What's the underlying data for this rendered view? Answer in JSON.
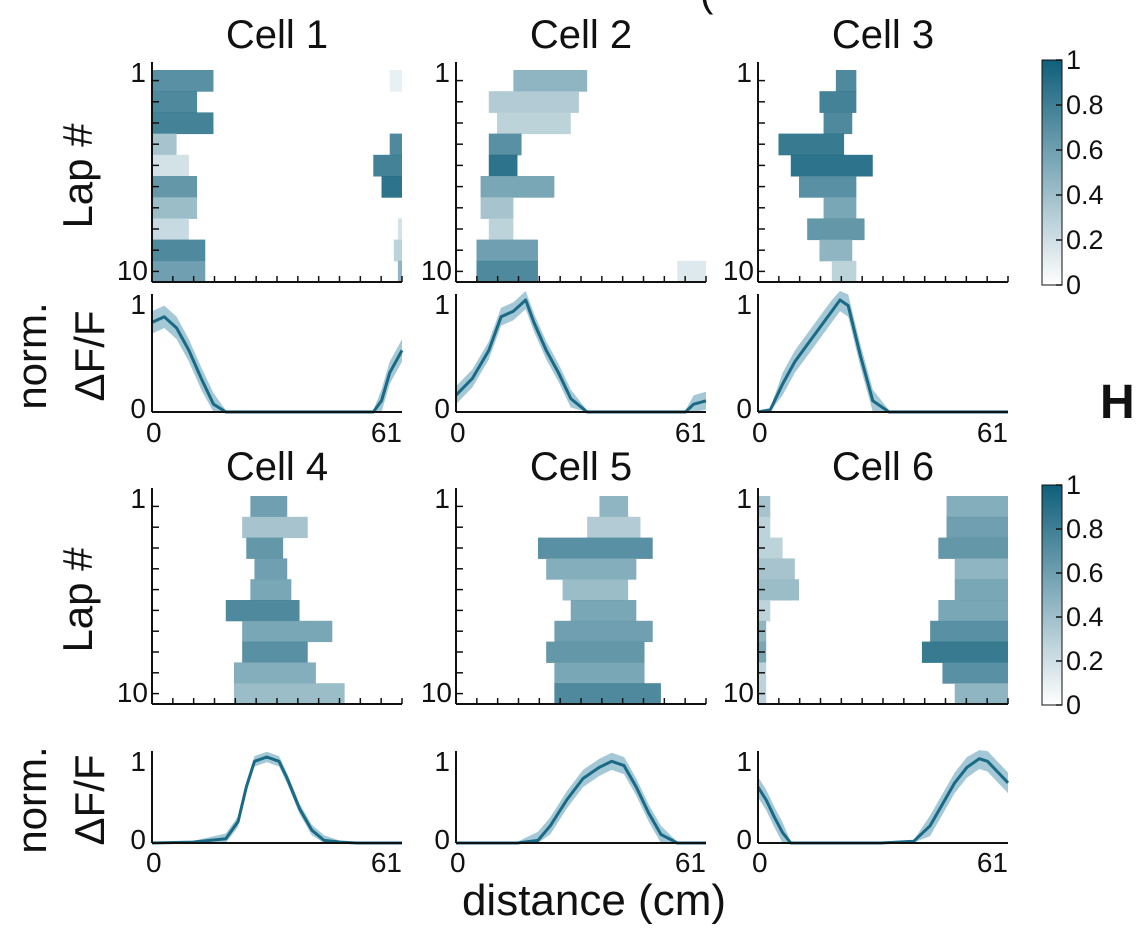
{
  "panel_letters": {
    "top_partial": "(",
    "right": "H"
  },
  "colorbar": {
    "ticks": [
      "1",
      "0.8",
      "0.6",
      "0.4",
      "0.2",
      "0"
    ],
    "label": "norm. ΔF/F",
    "color_low": "#ffffff",
    "color_high": "#0f5f7a"
  },
  "axis_labels": {
    "lap_ylabel": "Lap #",
    "trace_ylabel_line1": "norm.",
    "trace_ylabel_line2": "ΔF/F",
    "xlabel": "distance (cm)",
    "lap_tick_first": "1",
    "lap_tick_last": "10",
    "trace_tick_max": "1",
    "trace_tick_min": "0",
    "x_tick_min": "0",
    "x_tick_max": "61"
  },
  "chart_data": [
    {
      "type": "heatmap",
      "title": "Cell 1",
      "x_range": [
        0,
        61
      ],
      "lap_range": [
        1,
        10
      ],
      "laps": [
        {
          "lap": 1,
          "bins": [
            [
              0,
              15,
              0.75
            ]
          ],
          "end": [
            [
              58,
              61,
              0.1
            ]
          ]
        },
        {
          "lap": 2,
          "bins": [
            [
              0,
              11,
              0.8
            ]
          ]
        },
        {
          "lap": 3,
          "bins": [
            [
              0,
              15,
              0.85
            ]
          ]
        },
        {
          "lap": 4,
          "bins": [
            [
              0,
              6,
              0.4
            ]
          ],
          "end": [
            [
              58,
              61,
              0.8
            ]
          ]
        },
        {
          "lap": 5,
          "bins": [
            [
              0,
              9,
              0.2
            ]
          ],
          "end": [
            [
              54,
              61,
              0.85
            ]
          ]
        },
        {
          "lap": 6,
          "bins": [
            [
              0,
              11,
              0.7
            ]
          ],
          "end": [
            [
              56,
              61,
              0.95
            ]
          ]
        },
        {
          "lap": 7,
          "bins": [
            [
              0,
              11,
              0.45
            ]
          ]
        },
        {
          "lap": 8,
          "bins": [
            [
              0,
              9,
              0.25
            ]
          ],
          "end": [
            [
              60,
              61,
              0.2
            ]
          ]
        },
        {
          "lap": 9,
          "bins": [
            [
              0,
              13,
              0.8
            ]
          ],
          "end": [
            [
              59,
              61,
              0.3
            ]
          ]
        },
        {
          "lap": 10,
          "bins": [
            [
              0,
              13,
              0.65
            ]
          ],
          "end": [
            [
              60,
              61,
              0.5
            ]
          ]
        }
      ],
      "trace": {
        "x": [
          0,
          3,
          6,
          9,
          12,
          15,
          18,
          21,
          30,
          40,
          54,
          56,
          58,
          61
        ],
        "y": [
          0.8,
          0.85,
          0.75,
          0.55,
          0.3,
          0.07,
          0,
          0,
          0,
          0,
          0,
          0.1,
          0.35,
          0.55
        ],
        "band": 0.1
      }
    },
    {
      "type": "heatmap",
      "title": "Cell 2",
      "x_range": [
        0,
        61
      ],
      "lap_range": [
        1,
        10
      ],
      "laps": [
        {
          "lap": 1,
          "bins": [
            [
              14,
              32,
              0.5
            ]
          ]
        },
        {
          "lap": 2,
          "bins": [
            [
              8,
              30,
              0.35
            ]
          ]
        },
        {
          "lap": 3,
          "bins": [
            [
              10,
              28,
              0.3
            ]
          ]
        },
        {
          "lap": 4,
          "bins": [
            [
              8,
              16,
              0.75
            ]
          ]
        },
        {
          "lap": 5,
          "bins": [
            [
              8,
              15,
              0.95
            ]
          ]
        },
        {
          "lap": 6,
          "bins": [
            [
              6,
              24,
              0.6
            ]
          ]
        },
        {
          "lap": 7,
          "bins": [
            [
              6,
              14,
              0.4
            ]
          ]
        },
        {
          "lap": 8,
          "bins": [
            [
              8,
              14,
              0.3
            ]
          ]
        },
        {
          "lap": 9,
          "bins": [
            [
              5,
              20,
              0.65
            ]
          ]
        },
        {
          "lap": 10,
          "bins": [
            [
              5,
              20,
              0.8
            ]
          ],
          "end": [
            [
              54,
              61,
              0.15
            ]
          ]
        }
      ],
      "trace": {
        "x": [
          0,
          4,
          8,
          11,
          14,
          17,
          19,
          22,
          25,
          28,
          32,
          40,
          50,
          56,
          58,
          61
        ],
        "y": [
          0.15,
          0.3,
          0.55,
          0.85,
          0.9,
          1.0,
          0.8,
          0.55,
          0.35,
          0.12,
          0,
          0,
          0,
          0,
          0.07,
          0.1
        ],
        "band": 0.08
      }
    },
    {
      "type": "heatmap",
      "title": "Cell 3",
      "x_range": [
        0,
        61
      ],
      "lap_range": [
        1,
        10
      ],
      "laps": [
        {
          "lap": 1,
          "bins": [
            [
              19,
              24,
              0.8
            ]
          ]
        },
        {
          "lap": 2,
          "bins": [
            [
              15,
              24,
              0.85
            ]
          ]
        },
        {
          "lap": 3,
          "bins": [
            [
              16,
              23,
              0.8
            ]
          ]
        },
        {
          "lap": 4,
          "bins": [
            [
              5,
              21,
              0.9
            ]
          ]
        },
        {
          "lap": 5,
          "bins": [
            [
              8,
              28,
              0.95
            ]
          ]
        },
        {
          "lap": 6,
          "bins": [
            [
              10,
              24,
              0.75
            ]
          ]
        },
        {
          "lap": 7,
          "bins": [
            [
              16,
              24,
              0.6
            ]
          ]
        },
        {
          "lap": 8,
          "bins": [
            [
              12,
              26,
              0.7
            ]
          ]
        },
        {
          "lap": 9,
          "bins": [
            [
              15,
              23,
              0.5
            ]
          ]
        },
        {
          "lap": 10,
          "bins": [
            [
              18,
              24,
              0.3
            ]
          ]
        }
      ],
      "trace": {
        "x": [
          0,
          3,
          6,
          9,
          12,
          15,
          18,
          20,
          22,
          25,
          28,
          32,
          40,
          50,
          61
        ],
        "y": [
          0,
          0.02,
          0.25,
          0.45,
          0.6,
          0.75,
          0.9,
          1.0,
          0.95,
          0.5,
          0.1,
          0,
          0,
          0,
          0
        ],
        "band": 0.1
      }
    },
    {
      "type": "heatmap",
      "title": "Cell 4",
      "x_range": [
        0,
        61
      ],
      "lap_range": [
        1,
        10
      ],
      "laps": [
        {
          "lap": 1,
          "bins": [
            [
              24,
              33,
              0.65
            ]
          ]
        },
        {
          "lap": 2,
          "bins": [
            [
              22,
              38,
              0.4
            ]
          ]
        },
        {
          "lap": 3,
          "bins": [
            [
              23,
              32,
              0.7
            ]
          ]
        },
        {
          "lap": 4,
          "bins": [
            [
              25,
              33,
              0.65
            ]
          ]
        },
        {
          "lap": 5,
          "bins": [
            [
              24,
              34,
              0.6
            ]
          ]
        },
        {
          "lap": 6,
          "bins": [
            [
              18,
              36,
              0.8
            ]
          ]
        },
        {
          "lap": 7,
          "bins": [
            [
              22,
              44,
              0.6
            ]
          ]
        },
        {
          "lap": 8,
          "bins": [
            [
              22,
              38,
              0.75
            ]
          ]
        },
        {
          "lap": 9,
          "bins": [
            [
              20,
              40,
              0.55
            ]
          ]
        },
        {
          "lap": 10,
          "bins": [
            [
              20,
              47,
              0.45
            ]
          ]
        }
      ],
      "trace": {
        "x": [
          0,
          10,
          18,
          21,
          23,
          25,
          28,
          31,
          33,
          36,
          39,
          42,
          46,
          50,
          61
        ],
        "y": [
          0,
          0.01,
          0.05,
          0.25,
          0.65,
          0.95,
          1.0,
          0.95,
          0.75,
          0.4,
          0.15,
          0.03,
          0.01,
          0,
          0
        ],
        "band": 0.06
      }
    },
    {
      "type": "heatmap",
      "title": "Cell 5",
      "x_range": [
        0,
        61
      ],
      "lap_range": [
        1,
        10
      ],
      "laps": [
        {
          "lap": 1,
          "bins": [
            [
              35,
              42,
              0.5
            ]
          ]
        },
        {
          "lap": 2,
          "bins": [
            [
              32,
              45,
              0.35
            ]
          ]
        },
        {
          "lap": 3,
          "bins": [
            [
              20,
              48,
              0.75
            ]
          ]
        },
        {
          "lap": 4,
          "bins": [
            [
              22,
              44,
              0.55
            ]
          ]
        },
        {
          "lap": 5,
          "bins": [
            [
              26,
              42,
              0.45
            ]
          ]
        },
        {
          "lap": 6,
          "bins": [
            [
              28,
              44,
              0.6
            ]
          ]
        },
        {
          "lap": 7,
          "bins": [
            [
              24,
              48,
              0.65
            ]
          ]
        },
        {
          "lap": 8,
          "bins": [
            [
              22,
              46,
              0.7
            ]
          ]
        },
        {
          "lap": 9,
          "bins": [
            [
              24,
              46,
              0.6
            ]
          ]
        },
        {
          "lap": 10,
          "bins": [
            [
              24,
              50,
              0.8
            ]
          ]
        }
      ],
      "trace": {
        "x": [
          0,
          15,
          20,
          23,
          27,
          31,
          35,
          38,
          41,
          44,
          47,
          50,
          54,
          61
        ],
        "y": [
          0,
          0,
          0.03,
          0.2,
          0.5,
          0.75,
          0.88,
          0.95,
          0.9,
          0.65,
          0.35,
          0.1,
          0,
          0
        ],
        "band": 0.1
      }
    },
    {
      "type": "heatmap",
      "title": "Cell 6",
      "x_range": [
        0,
        61
      ],
      "lap_range": [
        1,
        10
      ],
      "laps": [
        {
          "lap": 1,
          "bins": [
            [
              0,
              3,
              0.4
            ]
          ],
          "end": [
            [
              46,
              61,
              0.55
            ]
          ]
        },
        {
          "lap": 2,
          "bins": [
            [
              0,
              3,
              0.3
            ]
          ],
          "end": [
            [
              46,
              61,
              0.65
            ]
          ]
        },
        {
          "lap": 3,
          "bins": [
            [
              0,
              6,
              0.3
            ]
          ],
          "end": [
            [
              44,
              61,
              0.7
            ]
          ]
        },
        {
          "lap": 4,
          "bins": [
            [
              0,
              9,
              0.4
            ]
          ],
          "end": [
            [
              48,
              61,
              0.5
            ]
          ]
        },
        {
          "lap": 5,
          "bins": [
            [
              0,
              10,
              0.45
            ]
          ],
          "end": [
            [
              48,
              61,
              0.6
            ]
          ]
        },
        {
          "lap": 6,
          "bins": [
            [
              0,
              3,
              0.3
            ]
          ],
          "end": [
            [
              44,
              61,
              0.6
            ]
          ]
        },
        {
          "lap": 7,
          "bins": [
            [
              0,
              2,
              0.5
            ]
          ],
          "end": [
            [
              42,
              61,
              0.75
            ]
          ]
        },
        {
          "lap": 8,
          "bins": [
            [
              0,
              2,
              0.6
            ]
          ],
          "end": [
            [
              40,
              61,
              0.9
            ]
          ]
        },
        {
          "lap": 9,
          "bins": [
            [
              0,
              2,
              0.3
            ]
          ],
          "end": [
            [
              45,
              61,
              0.75
            ]
          ]
        },
        {
          "lap": 10,
          "bins": [
            [
              0,
              2,
              0.3
            ]
          ],
          "end": [
            [
              48,
              61,
              0.5
            ]
          ]
        }
      ],
      "trace": {
        "x": [
          0,
          2,
          4,
          6,
          8,
          12,
          20,
          30,
          38,
          42,
          45,
          48,
          51,
          54,
          56,
          58,
          61
        ],
        "y": [
          0.65,
          0.5,
          0.3,
          0.12,
          0,
          0,
          0,
          0,
          0.02,
          0.2,
          0.45,
          0.7,
          0.88,
          0.98,
          0.95,
          0.85,
          0.7
        ],
        "band": 0.12
      }
    }
  ]
}
